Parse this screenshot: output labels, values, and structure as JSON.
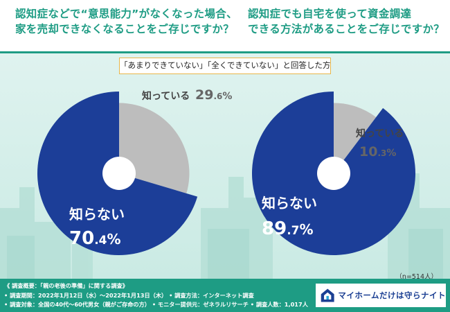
{
  "header": {
    "q1_line1": "認知症などで“意思能力”がなくなった場合、",
    "q1_line2": "家を売却できなくなることをご存じですか？",
    "q2_line1": "認知症でも自宅を使って資金調達",
    "q2_line2": "できる方法があることをご存じですか？"
  },
  "subtitle": "「あまりできていない」「全くできていない」と回答した方",
  "chart_data": [
    {
      "type": "pie",
      "title": "認知症などで“意思能力”がなくなった場合、家を売却できなくなることをご存じですか？",
      "categories": [
        "知らない",
        "知っている"
      ],
      "values": [
        70.4,
        29.6
      ],
      "colors": [
        "#1c3e98",
        "#bdbdbd"
      ],
      "labels": [
        {
          "name": "知らない",
          "value_main": "70",
          "value_dec": ".4",
          "unit": "%"
        },
        {
          "name": "知っている",
          "value_main": "29",
          "value_dec": ".6",
          "unit": "%"
        }
      ]
    },
    {
      "type": "pie",
      "title": "認知症でも自宅を使って資金調達できる方法があることをご存じですか？",
      "categories": [
        "知らない",
        "知っている"
      ],
      "values": [
        89.7,
        10.3
      ],
      "colors": [
        "#1c3e98",
        "#bdbdbd"
      ],
      "labels": [
        {
          "name": "知らない",
          "value_main": "89",
          "value_dec": ".7",
          "unit": "%"
        },
        {
          "name": "知っている",
          "value_main": "10",
          "value_dec": ".3",
          "unit": "%"
        }
      ]
    }
  ],
  "n_label": "（n=514人）",
  "footer": {
    "line1": "《 調査概要：「親の老後の準備」に関する調査》",
    "line2": "• 調査期間：2022年1月12日（水）〜2022年1月13日（木） • 調査方法：インターネット調査",
    "line3": "• 調査対象：全国の40代〜60代男女（親がご存命の方） • モニター提供元：ゼネラルリサーチ • 調査人数：1,017人"
  },
  "logo": {
    "text": "マイホームだけは守らナイト"
  }
}
